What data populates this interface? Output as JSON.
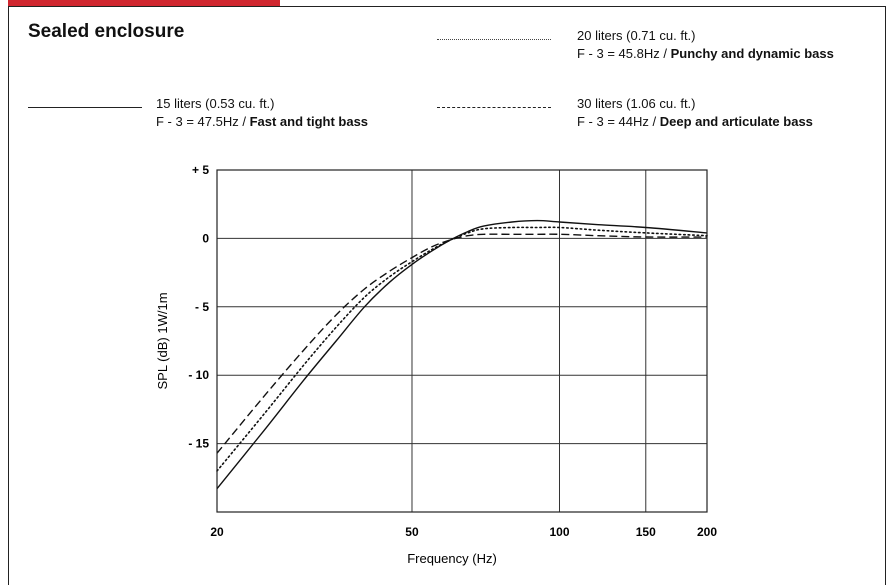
{
  "chart_data": {
    "type": "line",
    "title": "Sealed enclosure",
    "xlabel": "Frequency (Hz)",
    "ylabel": "SPL (dB) 1W/1m",
    "x_scale": "log",
    "xlim": [
      20,
      200
    ],
    "ylim": [
      -20,
      5
    ],
    "x_ticks": [
      20,
      50,
      100,
      150,
      200
    ],
    "x_tick_labels": [
      "20",
      "50",
      "100",
      "150",
      "200"
    ],
    "y_ticks": [
      5,
      0,
      -5,
      -10,
      -15
    ],
    "y_tick_labels": [
      "+ 5",
      "0",
      "- 5",
      "- 10",
      "- 15"
    ],
    "grid": true,
    "series": [
      {
        "name": "15 liters (0.53 cu. ft.)",
        "note": "F - 3 = 47.5Hz / ",
        "note_bold": "Fast and tight bass",
        "style": "solid",
        "x": [
          20,
          25,
          30,
          35,
          40,
          45,
          50,
          55,
          60,
          65,
          70,
          80,
          90,
          100,
          120,
          150,
          200
        ],
        "y": [
          -18.3,
          -14.0,
          -10.4,
          -7.5,
          -5.0,
          -3.2,
          -1.9,
          -0.9,
          -0.1,
          0.5,
          0.9,
          1.2,
          1.3,
          1.2,
          1.0,
          0.8,
          0.4
        ]
      },
      {
        "name": "20 liters (0.71 cu. ft.)",
        "note": "F - 3 = 45.8Hz / ",
        "note_bold": "Punchy and dynamic bass",
        "style": "dotted",
        "x": [
          20,
          25,
          30,
          35,
          40,
          45,
          50,
          55,
          60,
          65,
          70,
          80,
          90,
          100,
          120,
          150,
          200
        ],
        "y": [
          -17.0,
          -12.8,
          -9.3,
          -6.5,
          -4.3,
          -2.8,
          -1.7,
          -0.8,
          -0.1,
          0.4,
          0.7,
          0.8,
          0.8,
          0.8,
          0.6,
          0.4,
          0.2
        ]
      },
      {
        "name": "30 liters (1.06 cu. ft.)",
        "note": "F - 3 = 44Hz / ",
        "note_bold": "Deep and articulate bass",
        "style": "dashed",
        "x": [
          20,
          25,
          30,
          35,
          40,
          45,
          50,
          55,
          60,
          65,
          70,
          80,
          90,
          100,
          120,
          150,
          200
        ],
        "y": [
          -15.7,
          -11.5,
          -8.2,
          -5.6,
          -3.7,
          -2.4,
          -1.4,
          -0.6,
          -0.1,
          0.2,
          0.3,
          0.3,
          0.3,
          0.3,
          0.2,
          0.1,
          0.1
        ]
      }
    ]
  }
}
